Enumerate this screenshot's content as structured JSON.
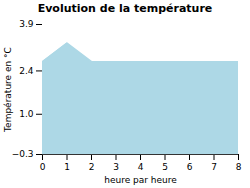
{
  "chart_data": {
    "type": "area",
    "title": "Evolution de la température",
    "x_label": "heure par heure",
    "y_label": "Température en °C",
    "x": [
      0,
      1,
      2,
      3,
      4,
      5,
      6,
      7,
      8
    ],
    "values": [
      2.7,
      3.3,
      2.7,
      2.7,
      2.7,
      2.7,
      2.7,
      2.7,
      2.7
    ],
    "color": "#add8e6",
    "xlim": [
      0,
      8
    ],
    "xticks": [
      0,
      1,
      2,
      3,
      4,
      5,
      6,
      7,
      8
    ],
    "ylim": [
      -0.3,
      3.9
    ],
    "yticks": [
      -0.3,
      {
        "value": 1,
        "label": "1.0"
      },
      2.4,
      3.9
    ]
  }
}
